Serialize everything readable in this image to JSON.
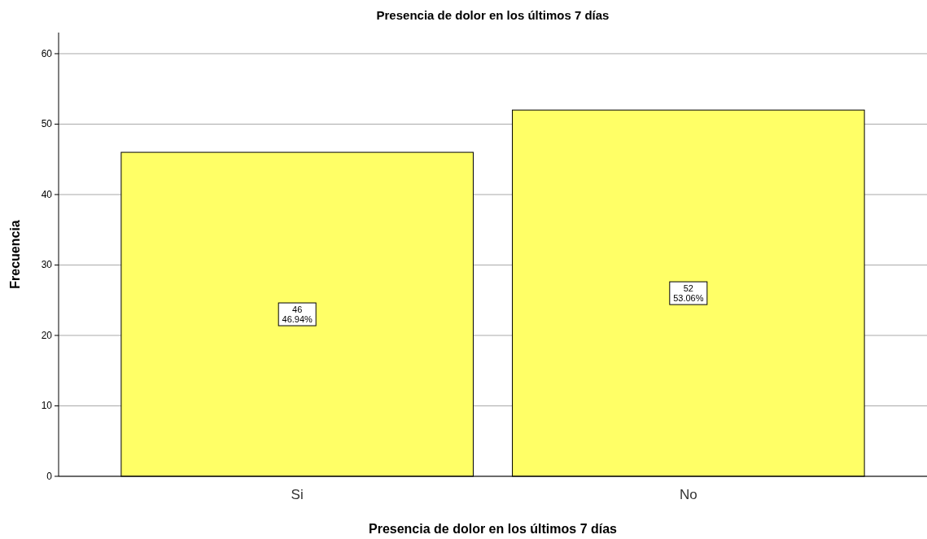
{
  "chart_data": {
    "type": "bar",
    "title": "Presencia de dolor en los últimos 7 días",
    "xlabel": "Presencia de dolor en los últimos 7 días",
    "ylabel": "Frecuencia",
    "categories": [
      "Si",
      "No"
    ],
    "values": [
      46,
      52
    ],
    "color": "#ffff66",
    "value_labels": [
      "46\n46.94%",
      "52\n53.06%"
    ],
    "ylim": [
      0,
      63
    ],
    "yticks": [
      0,
      10,
      20,
      30,
      40,
      50,
      60
    ],
    "grid": "y"
  }
}
